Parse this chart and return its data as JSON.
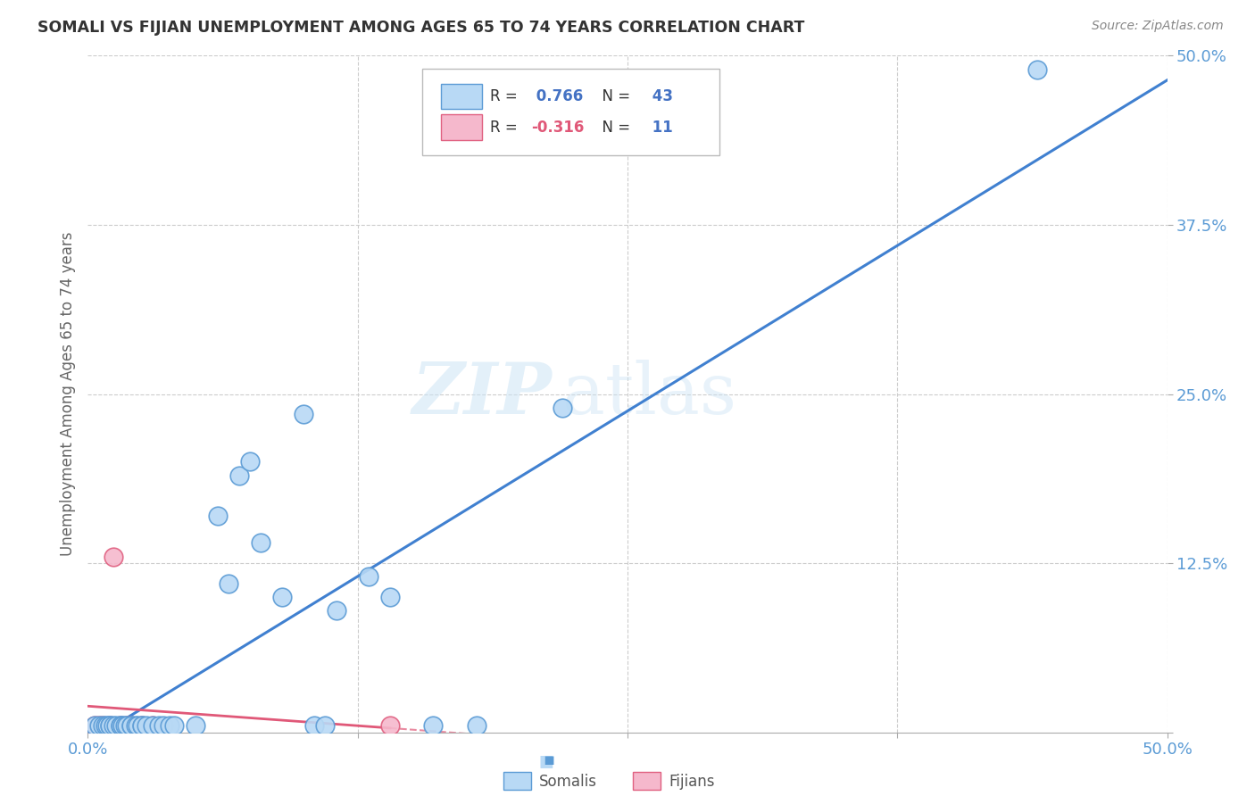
{
  "title": "SOMALI VS FIJIAN UNEMPLOYMENT AMONG AGES 65 TO 74 YEARS CORRELATION CHART",
  "source": "Source: ZipAtlas.com",
  "ylabel": "Unemployment Among Ages 65 to 74 years",
  "xlim": [
    0.0,
    0.5
  ],
  "ylim": [
    0.0,
    0.5
  ],
  "somali_color": "#b8d9f5",
  "fijian_color": "#f5b8cc",
  "somali_edge_color": "#5b9bd5",
  "fijian_edge_color": "#e06080",
  "somali_line_color": "#4080d0",
  "fijian_line_color": "#e05878",
  "r_somali": "0.766",
  "n_somali": "43",
  "r_fijian": "-0.316",
  "n_fijian": "11",
  "watermark_zip": "ZIP",
  "watermark_atlas": "atlas",
  "background_color": "#ffffff",
  "grid_color": "#cccccc",
  "tick_color": "#5b9bd5",
  "somali_x": [
    0.003,
    0.005,
    0.007,
    0.008,
    0.009,
    0.01,
    0.01,
    0.012,
    0.013,
    0.015,
    0.015,
    0.016,
    0.017,
    0.018,
    0.02,
    0.02,
    0.022,
    0.023,
    0.025,
    0.025,
    0.027,
    0.03,
    0.033,
    0.035,
    0.038,
    0.04,
    0.05,
    0.06,
    0.065,
    0.07,
    0.075,
    0.08,
    0.09,
    0.1,
    0.105,
    0.11,
    0.115,
    0.13,
    0.14,
    0.16,
    0.18,
    0.22,
    0.44
  ],
  "somali_y": [
    0.005,
    0.005,
    0.005,
    0.005,
    0.005,
    0.005,
    0.005,
    0.005,
    0.005,
    0.005,
    0.005,
    0.005,
    0.005,
    0.005,
    0.005,
    0.005,
    0.005,
    0.005,
    0.005,
    0.005,
    0.005,
    0.005,
    0.005,
    0.005,
    0.005,
    0.005,
    0.005,
    0.16,
    0.11,
    0.19,
    0.2,
    0.14,
    0.1,
    0.235,
    0.005,
    0.005,
    0.09,
    0.115,
    0.1,
    0.005,
    0.005,
    0.24,
    0.49
  ],
  "fijian_x": [
    0.003,
    0.005,
    0.007,
    0.01,
    0.012,
    0.015,
    0.018,
    0.02,
    0.025,
    0.03,
    0.14
  ],
  "fijian_y": [
    0.005,
    0.005,
    0.005,
    0.005,
    0.13,
    0.005,
    0.005,
    0.005,
    0.005,
    0.005,
    0.005
  ]
}
